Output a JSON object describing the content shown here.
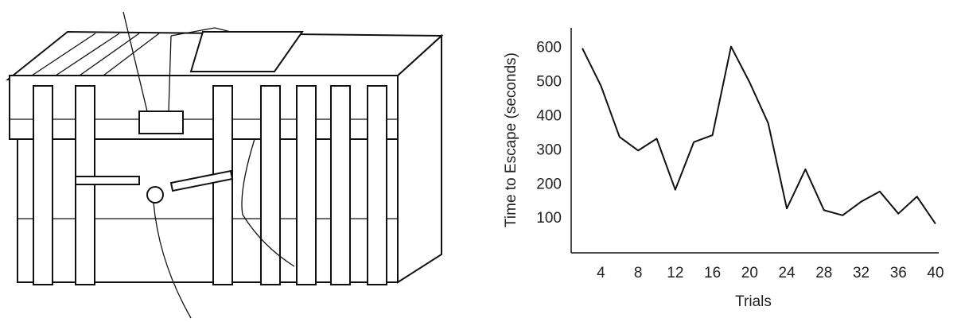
{
  "chart_data": {
    "type": "line",
    "y_label": "Time to Escape (seconds)",
    "x_label": "Trials",
    "x": [
      2,
      4,
      6,
      8,
      10,
      12,
      14,
      16,
      18,
      20,
      22,
      24,
      26,
      28,
      30,
      32,
      34,
      36,
      38,
      40
    ],
    "values": [
      600,
      490,
      340,
      300,
      335,
      185,
      325,
      345,
      605,
      500,
      380,
      130,
      245,
      125,
      110,
      150,
      180,
      115,
      165,
      85
    ],
    "color": "#111111",
    "xlim": [
      0.8,
      40
    ],
    "ylim": [
      0,
      660
    ],
    "xticks": [
      4,
      8,
      12,
      16,
      20,
      24,
      28,
      32,
      36,
      40
    ],
    "yticks": [
      100,
      200,
      300,
      400,
      500,
      600
    ]
  }
}
